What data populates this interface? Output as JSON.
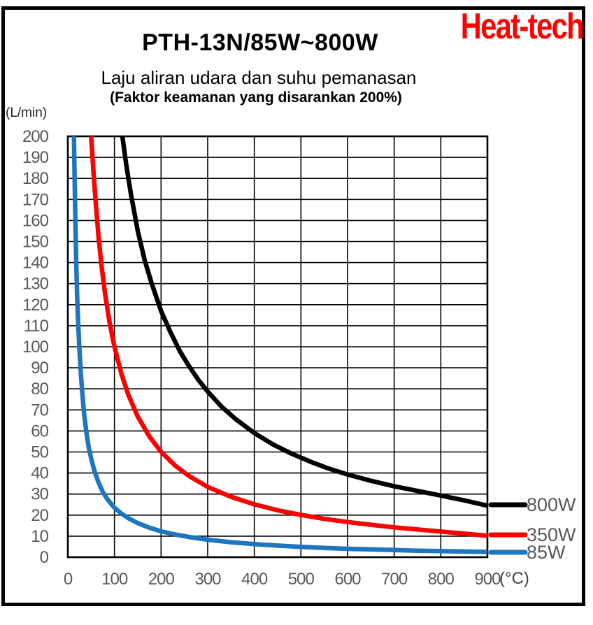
{
  "header": {
    "logo": "Heat-tech",
    "logo_color": "#ff0000"
  },
  "colors": {
    "axis_text": "#595959",
    "grid": "#000000",
    "plot_border": "#000000",
    "background": "#ffffff"
  },
  "legend": {
    "position": "right-bottom-outside",
    "items": [
      {
        "label": "800W",
        "color": "#000000"
      },
      {
        "label": "350W",
        "color": "#ff0000"
      },
      {
        "label": "85W",
        "color": "#1f76c0"
      }
    ]
  },
  "chart_data": {
    "type": "line",
    "title": "PTH-13N/85W~800W",
    "subtitle": "Laju aliran udara dan suhu pemanasan",
    "note": "(Faktor keamanan yang disarankan 200%)",
    "xlabel": "(°C)",
    "ylabel": "(L/min)",
    "xlim": [
      0,
      900
    ],
    "ylim": [
      0,
      200
    ],
    "x_ticks": [
      0,
      100,
      200,
      300,
      400,
      500,
      600,
      700,
      800,
      900
    ],
    "y_ticks": [
      0,
      10,
      20,
      30,
      40,
      50,
      60,
      70,
      80,
      90,
      100,
      110,
      120,
      130,
      140,
      150,
      160,
      170,
      180,
      190,
      200
    ],
    "grid": true,
    "series": [
      {
        "name": "800W",
        "color": "#000000",
        "points": [
          [
            117,
            200
          ],
          [
            125,
            187
          ],
          [
            135,
            173
          ],
          [
            150,
            155
          ],
          [
            165,
            141
          ],
          [
            180,
            130
          ],
          [
            200,
            117
          ],
          [
            220,
            107
          ],
          [
            240,
            98
          ],
          [
            260,
            90.8
          ],
          [
            280,
            84.3
          ],
          [
            300,
            78.7
          ],
          [
            330,
            71.5
          ],
          [
            360,
            65.6
          ],
          [
            400,
            59
          ],
          [
            440,
            53.6
          ],
          [
            480,
            49.2
          ],
          [
            520,
            45.4
          ],
          [
            560,
            42.1
          ],
          [
            600,
            39.3
          ],
          [
            650,
            36.3
          ],
          [
            700,
            33.7
          ],
          [
            750,
            31.5
          ],
          [
            800,
            29.3
          ],
          [
            850,
            27
          ],
          [
            900,
            24.5
          ]
        ]
      },
      {
        "name": "350W",
        "color": "#ff0000",
        "points": [
          [
            50,
            200
          ],
          [
            55,
            183
          ],
          [
            60,
            168
          ],
          [
            66,
            152
          ],
          [
            72,
            139
          ],
          [
            80,
            125
          ],
          [
            90,
            111
          ],
          [
            100,
            100
          ],
          [
            115,
            87
          ],
          [
            130,
            77
          ],
          [
            150,
            66.8
          ],
          [
            175,
            57.3
          ],
          [
            200,
            50.1
          ],
          [
            230,
            43.6
          ],
          [
            260,
            38.6
          ],
          [
            300,
            33.4
          ],
          [
            350,
            28.7
          ],
          [
            400,
            25.1
          ],
          [
            450,
            22.3
          ],
          [
            500,
            20.1
          ],
          [
            550,
            18.2
          ],
          [
            600,
            16.7
          ],
          [
            650,
            15.4
          ],
          [
            700,
            14.2
          ],
          [
            750,
            13.2
          ],
          [
            800,
            12.2
          ],
          [
            850,
            11.2
          ],
          [
            900,
            10.2
          ]
        ]
      },
      {
        "name": "85W",
        "color": "#1f76c0",
        "points": [
          [
            13,
            200
          ],
          [
            14.5,
            180
          ],
          [
            16,
            162
          ],
          [
            18,
            140
          ],
          [
            20,
            124
          ],
          [
            22,
            112
          ],
          [
            25,
            98
          ],
          [
            28,
            87
          ],
          [
            31,
            78
          ],
          [
            35,
            68
          ],
          [
            40,
            59
          ],
          [
            45,
            52
          ],
          [
            50,
            47
          ],
          [
            57,
            41
          ],
          [
            65,
            36
          ],
          [
            75,
            31
          ],
          [
            85,
            27.5
          ],
          [
            100,
            23.5
          ],
          [
            115,
            20.7
          ],
          [
            130,
            18.5
          ],
          [
            150,
            16.2
          ],
          [
            175,
            14
          ],
          [
            200,
            12.3
          ],
          [
            230,
            10.8
          ],
          [
            260,
            9.6
          ],
          [
            300,
            8.3
          ],
          [
            350,
            7.1
          ],
          [
            400,
            6.2
          ],
          [
            450,
            5.5
          ],
          [
            500,
            4.9
          ],
          [
            550,
            4.4
          ],
          [
            600,
            4.0
          ],
          [
            650,
            3.7
          ],
          [
            700,
            3.4
          ],
          [
            750,
            3.1
          ],
          [
            800,
            2.9
          ],
          [
            850,
            2.7
          ],
          [
            900,
            2.5
          ]
        ]
      }
    ]
  }
}
